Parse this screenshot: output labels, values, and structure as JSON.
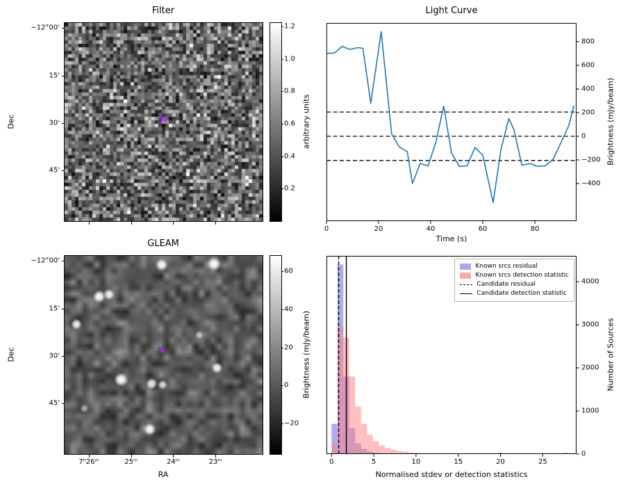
{
  "panels": {
    "filter": {
      "title": "Filter",
      "ylabel": "Dec",
      "ytick_labels": [
        "−12°00'",
        "15'",
        "30'",
        "45'"
      ],
      "colorbar": {
        "label": "arbitrary units",
        "tick_labels": [
          "1.2",
          "1.0",
          "0.8",
          "0.6",
          "0.4",
          "0.2"
        ],
        "tick_values": [
          1.2,
          1.0,
          0.8,
          0.6,
          0.4,
          0.2
        ],
        "range": [
          0,
          1.222
        ]
      }
    },
    "light_curve": {
      "title": "Light Curve",
      "xlabel": "Time (s)",
      "ylabel": "Brightness (mJy/beam)",
      "xtick_labels": [
        "0",
        "20",
        "40",
        "60",
        "80"
      ],
      "xtick_values": [
        0,
        20,
        40,
        60,
        80
      ],
      "ytick_labels": [
        "800",
        "600",
        "400",
        "200",
        "0",
        "−200",
        "−400"
      ],
      "ytick_values": [
        800,
        600,
        400,
        200,
        0,
        -200,
        -400
      ]
    },
    "gleam": {
      "title": "GLEAM",
      "xlabel": "RA",
      "ylabel": "Dec",
      "xtick_labels": [
        "7ʰ26ᵐ",
        "25ᵐ",
        "24ᵐ",
        "23ᵐ"
      ],
      "ytick_labels": [
        "−12°00'",
        "15'",
        "30'",
        "45'"
      ],
      "colorbar": {
        "label": "Brightness (mJy/beam)",
        "tick_labels": [
          "60",
          "40",
          "20",
          "0",
          "−20"
        ],
        "tick_values": [
          60,
          40,
          20,
          0,
          -20
        ],
        "range": [
          -36,
          68
        ]
      }
    },
    "histogram": {
      "xlabel": "Normalised stdev or detection statistics",
      "ylabel": "Number of Sources",
      "xtick_labels": [
        "0",
        "5",
        "10",
        "15",
        "20",
        "25"
      ],
      "xtick_values": [
        0,
        5,
        10,
        15,
        20,
        25
      ],
      "ytick_labels": [
        "0",
        "1000",
        "2000",
        "3000",
        "4000"
      ],
      "ytick_values": [
        0,
        1000,
        2000,
        3000,
        4000
      ],
      "legend": [
        {
          "label": "Known srcs residual",
          "type": "patch",
          "swatch": "#a9a9ee"
        },
        {
          "label": "Known srcs detection statistic",
          "type": "patch",
          "swatch": "#f7abab"
        },
        {
          "label": "Candidate residual",
          "type": "dashed"
        },
        {
          "label": "Candidate detection statistic",
          "type": "solid"
        }
      ]
    }
  },
  "chart_data": [
    {
      "type": "heatmap",
      "title": "Filter",
      "ylabel": "Dec",
      "colorbar_label": "arbitrary units",
      "colorbar_range": [
        0,
        1.222
      ],
      "colormap": "gray",
      "description": "Random pixel noise image in arbitrary units",
      "marker": {
        "symbol": "x",
        "x_frac": 0.5,
        "y_frac": 0.487,
        "colors": [
          "#2222dd",
          "#dd22dd"
        ]
      }
    },
    {
      "type": "line",
      "title": "Light Curve",
      "xlabel": "Time (s)",
      "ylabel": "Brightness (mJy/beam)",
      "line_color": "#1f77b4",
      "xlim": [
        0,
        96
      ],
      "ylim": [
        -718,
        959
      ],
      "hlines": [
        205,
        0,
        -205
      ],
      "x": [
        0,
        3,
        6,
        9,
        12,
        14,
        17,
        21,
        25,
        28,
        31,
        33,
        36,
        39,
        42,
        45,
        48,
        51,
        54,
        57,
        60,
        64,
        67,
        70,
        72,
        75,
        78,
        81,
        84,
        87,
        90,
        93,
        95
      ],
      "y": [
        700,
        705,
        760,
        735,
        750,
        745,
        280,
        885,
        20,
        -90,
        -130,
        -400,
        -230,
        -250,
        -50,
        255,
        -140,
        -255,
        -250,
        -95,
        -160,
        -560,
        -110,
        150,
        55,
        -245,
        -230,
        -255,
        -250,
        -195,
        -55,
        90,
        260
      ]
    },
    {
      "type": "heatmap",
      "title": "GLEAM",
      "xlabel": "RA",
      "ylabel": "Dec",
      "colorbar_label": "Brightness (mJy/beam)",
      "colorbar_range": [
        -36,
        68
      ],
      "colormap": "gray",
      "description": "Smoothed sky map with bright point sources",
      "sources": [
        {
          "x": 0.49,
          "y": 0.045,
          "r": 9,
          "a": 1
        },
        {
          "x": 0.755,
          "y": 0.04,
          "r": 10,
          "a": 1
        },
        {
          "x": 0.175,
          "y": 0.205,
          "r": 9,
          "a": 1
        },
        {
          "x": 0.225,
          "y": 0.195,
          "r": 8,
          "a": 0.9
        },
        {
          "x": 0.06,
          "y": 0.345,
          "r": 8,
          "a": 0.95
        },
        {
          "x": 0.285,
          "y": 0.625,
          "r": 10,
          "a": 1
        },
        {
          "x": 0.44,
          "y": 0.645,
          "r": 8,
          "a": 0.9
        },
        {
          "x": 0.495,
          "y": 0.65,
          "r": 7,
          "a": 0.8
        },
        {
          "x": 0.77,
          "y": 0.565,
          "r": 8,
          "a": 0.95
        },
        {
          "x": 0.43,
          "y": 0.875,
          "r": 9,
          "a": 1
        },
        {
          "x": 0.1,
          "y": 0.77,
          "r": 6,
          "a": 0.55
        },
        {
          "x": 0.68,
          "y": 0.4,
          "r": 6,
          "a": 0.6
        }
      ],
      "marker": {
        "symbol": "x",
        "x_frac": 0.49,
        "y_frac": 0.475,
        "colors": [
          "#3333cc",
          "#bb33bb"
        ]
      }
    },
    {
      "type": "histogram",
      "xlabel": "Normalised stdev or detection statistics",
      "ylabel": "Number of Sources",
      "xlim": [
        -0.6,
        29
      ],
      "ylim": [
        0,
        4600
      ],
      "bin_start": 0,
      "bin_width": 0.7,
      "series": [
        {
          "name": "Known srcs residual",
          "color": "#6a6ae0",
          "fill_opacity": 0.55,
          "values": [
            700,
            4400,
            1800,
            600,
            250,
            120,
            60,
            30,
            15,
            8,
            4,
            2,
            1,
            1,
            0,
            0,
            0,
            0,
            0,
            0,
            0,
            0,
            0,
            0,
            0,
            0,
            0,
            0,
            0,
            0,
            0,
            0,
            0,
            0,
            0,
            0,
            0,
            0,
            0,
            0
          ]
        },
        {
          "name": "Known srcs detection statistic",
          "color": "#ff7f7f",
          "fill_opacity": 0.5,
          "values": [
            250,
            2950,
            2700,
            1800,
            1100,
            700,
            450,
            300,
            200,
            140,
            100,
            70,
            50,
            40,
            30,
            25,
            20,
            15,
            12,
            10,
            8,
            6,
            5,
            4,
            4,
            3,
            3,
            3,
            40,
            2,
            2,
            2,
            2,
            2,
            2,
            2,
            2,
            2,
            2,
            35
          ]
        }
      ],
      "vlines": [
        {
          "x": 0.85,
          "style": "dashed",
          "label": "Candidate residual"
        },
        {
          "x": 1.75,
          "style": "solid",
          "label": "Candidate detection statistic"
        }
      ]
    }
  ]
}
